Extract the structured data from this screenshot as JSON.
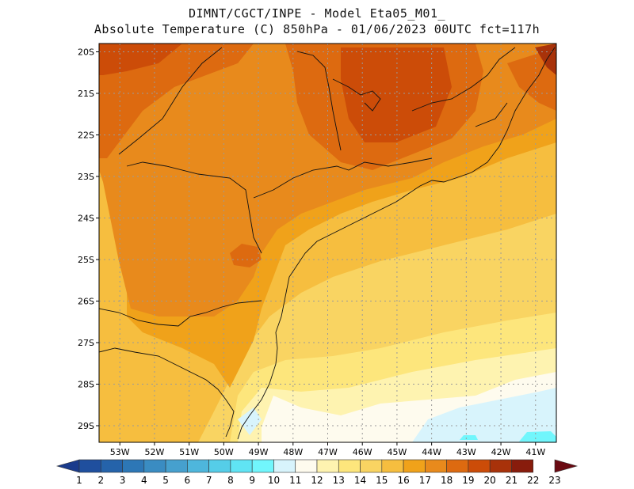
{
  "header": {
    "line1": "DIMNT/CGCT/INPE -  Model Eta05_M01_",
    "line2": "Absolute Temperature (C) 850hPa -  01/06/2023 00UTC fct=117h"
  },
  "map": {
    "lon_range": [
      -53.6,
      -40.4
    ],
    "lat_range": [
      -29.4,
      -19.8
    ],
    "lat_ticks": [
      "20S",
      "21S",
      "22S",
      "23S",
      "24S",
      "25S",
      "26S",
      "27S",
      "28S",
      "29S"
    ],
    "lat_values": [
      -20,
      -21,
      -22,
      -23,
      -24,
      -25,
      -26,
      -27,
      -28,
      -29
    ],
    "lon_ticks": [
      "53W",
      "52W",
      "51W",
      "50W",
      "49W",
      "48W",
      "47W",
      "46W",
      "45W",
      "44W",
      "43W",
      "42W",
      "41W"
    ],
    "lon_values": [
      -53,
      -52,
      -51,
      -50,
      -49,
      -48,
      -47,
      -46,
      -45,
      -44,
      -43,
      -42,
      -41
    ],
    "grid": true
  },
  "colorbar": {
    "labels": [
      "1",
      "2",
      "3",
      "4",
      "5",
      "6",
      "7",
      "8",
      "9",
      "10",
      "11",
      "12",
      "13",
      "14",
      "15",
      "16",
      "17",
      "18",
      "19",
      "20",
      "21",
      "22",
      "23"
    ],
    "colors": [
      "#1a3b8c",
      "#1f4f9e",
      "#2563aa",
      "#2d77b6",
      "#3a8cc2",
      "#46a0ce",
      "#4eb6dc",
      "#55cde8",
      "#60e4f4",
      "#71f6fc",
      "#d8f4fc",
      "#fefbee",
      "#fef3b0",
      "#fde67c",
      "#f9d462",
      "#f6be3f",
      "#f0a21a",
      "#e88a1c",
      "#dd6a10",
      "#cc4c08",
      "#a8320a",
      "#881c0c",
      "#6a0a12"
    ]
  }
}
